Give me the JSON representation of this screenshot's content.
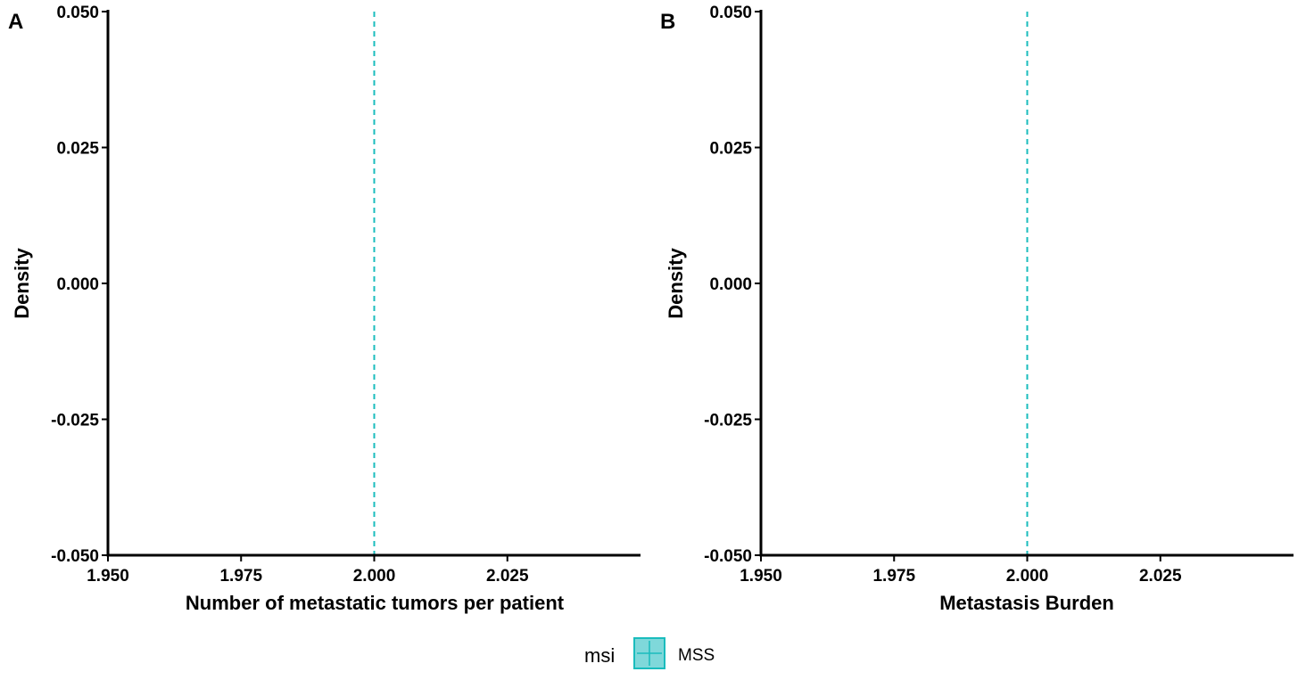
{
  "chart_data": [
    {
      "type": "density",
      "panel_label": "A",
      "xlabel": "Number of metastatic tumors per patient",
      "ylabel": "Density",
      "xlim": [
        1.95,
        2.05
      ],
      "ylim": [
        -0.05,
        0.05
      ],
      "x_ticks": [
        1.95,
        1.975,
        2.0,
        2.025
      ],
      "x_tick_labels": [
        "1.950",
        "1.975",
        "2.000",
        "2.025"
      ],
      "y_ticks": [
        -0.05,
        -0.025,
        0.0,
        0.025,
        0.05
      ],
      "y_tick_labels": [
        "-0.050",
        "-0.025",
        "0.000",
        "0.025",
        "0.050"
      ],
      "grid": false,
      "series": [
        {
          "name": "MSS",
          "color": "#1ABCBD",
          "values": [],
          "mean_line": 2.0
        }
      ]
    },
    {
      "type": "density",
      "panel_label": "B",
      "xlabel": "Metastasis Burden",
      "ylabel": "Density",
      "xlim": [
        1.95,
        2.05
      ],
      "ylim": [
        -0.05,
        0.05
      ],
      "x_ticks": [
        1.95,
        1.975,
        2.0,
        2.025
      ],
      "x_tick_labels": [
        "1.950",
        "1.975",
        "2.000",
        "2.025"
      ],
      "y_ticks": [
        -0.05,
        -0.025,
        0.0,
        0.025,
        0.05
      ],
      "y_tick_labels": [
        "-0.050",
        "-0.025",
        "0.000",
        "0.025",
        "0.050"
      ],
      "grid": false,
      "series": [
        {
          "name": "MSS",
          "color": "#1ABCBD",
          "values": [],
          "mean_line": 2.0
        }
      ]
    }
  ],
  "legend": {
    "title": "msi",
    "position": "bottom",
    "items": [
      {
        "label": "MSS",
        "color": "#1ABCBD",
        "fill": "#7FD8DA"
      }
    ]
  }
}
